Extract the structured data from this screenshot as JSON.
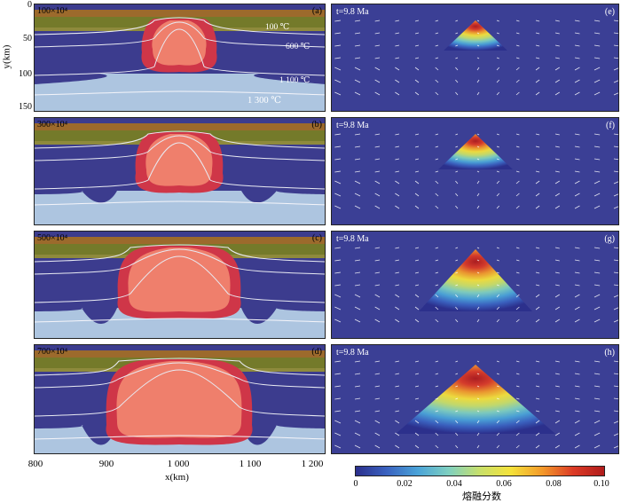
{
  "left_panels": [
    {
      "id": "a",
      "label": "(a)",
      "time": "100×10⁴",
      "isotherms": [
        "100 ℃",
        "600 ℃",
        "1 100 ℃",
        "1 300 ℃"
      ]
    },
    {
      "id": "b",
      "label": "(b)",
      "time": "300×10⁴",
      "isotherms": []
    },
    {
      "id": "c",
      "label": "(c)",
      "time": "500×10⁴",
      "isotherms": []
    },
    {
      "id": "d",
      "label": "(d)",
      "time": "700×10⁴",
      "isotherms": []
    }
  ],
  "right_panels": [
    {
      "id": "e",
      "label": "(e)",
      "time": "t=9.8 Ma"
    },
    {
      "id": "f",
      "label": "(f)",
      "time": "t=9.8 Ma"
    },
    {
      "id": "g",
      "label": "(g)",
      "time": "t=9.8 Ma"
    },
    {
      "id": "h",
      "label": "(h)",
      "time": "t=9.8 Ma"
    }
  ],
  "y_axis": {
    "label": "y(km)",
    "ticks": [
      "0",
      "50",
      "100",
      "150"
    ]
  },
  "x_axis": {
    "label": "x(km)",
    "ticks": [
      "800",
      "900",
      "1 000",
      "1 100",
      "1 200"
    ]
  },
  "colorbar": {
    "label": "熔融分数",
    "ticks": [
      "0",
      "0.02",
      "0.04",
      "0.06",
      "0.08",
      "0.10"
    ],
    "colors": [
      "#2b2f8c",
      "#3a62c0",
      "#4aa3d8",
      "#7fd0c0",
      "#c8e06a",
      "#f5e23a",
      "#f39a2a",
      "#dc3b26",
      "#b01c1c"
    ]
  },
  "colors": {
    "mantle": "#3c3c8e",
    "asthenosphere": "#adc5e0",
    "crust_brown": "#9c6a2c",
    "crust_green": "#747a2a",
    "plume_red": "#cf3648",
    "plume_core": "#ef7f6c"
  }
}
